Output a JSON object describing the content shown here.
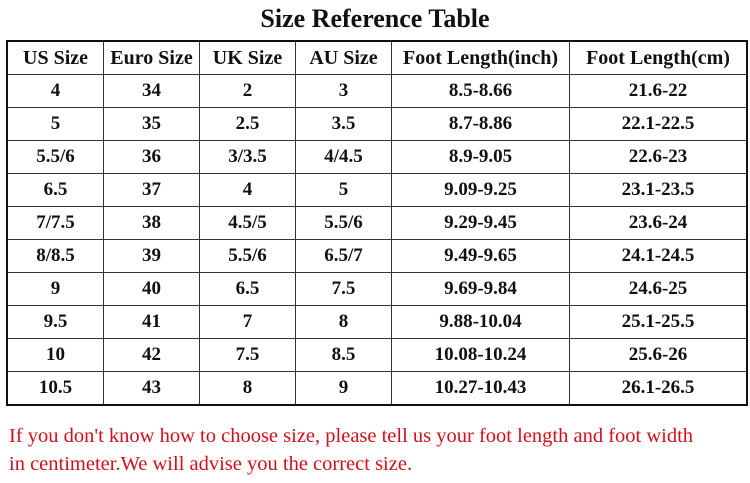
{
  "title": "Size Reference Table",
  "columns": [
    "US Size",
    "Euro Size",
    "UK Size",
    "AU Size",
    "Foot Length(inch)",
    "Foot Length(cm)"
  ],
  "rows": [
    [
      "4",
      "34",
      "2",
      "3",
      "8.5-8.66",
      "21.6-22"
    ],
    [
      "5",
      "35",
      "2.5",
      "3.5",
      "8.7-8.86",
      "22.1-22.5"
    ],
    [
      "5.5/6",
      "36",
      "3/3.5",
      "4/4.5",
      "8.9-9.05",
      "22.6-23"
    ],
    [
      "6.5",
      "37",
      "4",
      "5",
      "9.09-9.25",
      "23.1-23.5"
    ],
    [
      "7/7.5",
      "38",
      "4.5/5",
      "5.5/6",
      "9.29-9.45",
      "23.6-24"
    ],
    [
      "8/8.5",
      "39",
      "5.5/6",
      "6.5/7",
      "9.49-9.65",
      "24.1-24.5"
    ],
    [
      "9",
      "40",
      "6.5",
      "7.5",
      "9.69-9.84",
      "24.6-25"
    ],
    [
      "9.5",
      "41",
      "7",
      "8",
      "9.88-10.04",
      "25.1-25.5"
    ],
    [
      "10",
      "42",
      "7.5",
      "8.5",
      "10.08-10.24",
      "25.6-26"
    ],
    [
      "10.5",
      "43",
      "8",
      "9",
      "10.27-10.43",
      "26.1-26.5"
    ]
  ],
  "note_lines": [
    "If you don't know how to choose size, please tell us your foot length and foot width",
    "in centimeter.We will advise you the correct size."
  ],
  "colors": {
    "note": "#d0101a",
    "text": "#111111"
  }
}
